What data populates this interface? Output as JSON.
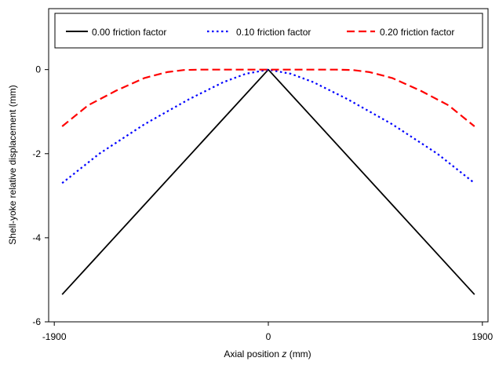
{
  "chart_data": {
    "type": "line",
    "title": "",
    "xlabel": "Axial position ",
    "xlabel_italic": "z",
    "xlabel_unit": " (mm)",
    "ylabel": "Shell-yoke relative displacement (mm)",
    "xlim": [
      -1950,
      1950
    ],
    "ylim": [
      -6,
      1.45
    ],
    "x_ticks": [
      -1900,
      0,
      1900
    ],
    "x_tick_labels": [
      "-1900",
      "0",
      "1900"
    ],
    "y_ticks": [
      0,
      -2,
      -4,
      -6
    ],
    "y_tick_labels": [
      "0",
      "-2",
      "-4",
      "-6"
    ],
    "grid": false,
    "legend_position": "top",
    "series": [
      {
        "name": "0.00 friction factor",
        "color": "#000000",
        "style": "solid",
        "x": [
          -1830,
          0,
          1830
        ],
        "y": [
          -5.35,
          0,
          -5.35
        ]
      },
      {
        "name": "0.10 friction factor",
        "color": "#0000ff",
        "style": "dotted",
        "x": [
          -1830,
          -1500,
          -1100,
          -700,
          -400,
          -200,
          0,
          200,
          400,
          700,
          1100,
          1500,
          1830
        ],
        "y": [
          -2.7,
          -2.0,
          -1.3,
          -0.7,
          -0.3,
          -0.1,
          0,
          -0.1,
          -0.3,
          -0.7,
          -1.3,
          -2.0,
          -2.7
        ]
      },
      {
        "name": "0.20 friction factor",
        "color": "#ff0000",
        "style": "dashed",
        "x": [
          -1830,
          -1600,
          -1350,
          -1100,
          -900,
          -750,
          -600,
          0,
          600,
          750,
          900,
          1100,
          1350,
          1600,
          1830
        ],
        "y": [
          -1.35,
          -0.85,
          -0.5,
          -0.2,
          -0.06,
          -0.01,
          0,
          0,
          0,
          -0.01,
          -0.06,
          -0.2,
          -0.5,
          -0.85,
          -1.35
        ]
      }
    ]
  }
}
